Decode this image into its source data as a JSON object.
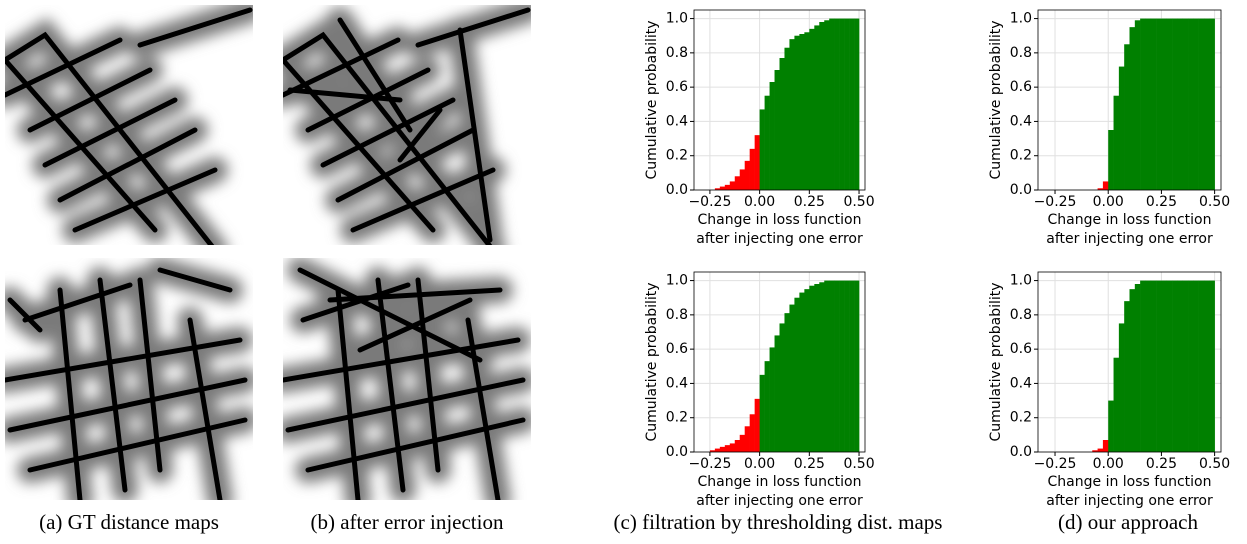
{
  "chart_data": [
    {
      "type": "histogram",
      "ylabel": "Cumulative probability",
      "xlabel": [
        "Change in loss function",
        "after injecting one error"
      ],
      "bins": [
        -0.3,
        -0.275,
        -0.25,
        -0.225,
        -0.2,
        -0.175,
        -0.15,
        -0.125,
        -0.1,
        -0.075,
        -0.05,
        -0.025,
        0,
        0.025,
        0.05,
        0.075,
        0.1,
        0.125,
        0.15,
        0.175,
        0.2,
        0.225,
        0.25,
        0.275,
        0.3,
        0.325,
        0.35,
        0.375,
        0.4,
        0.425,
        0.45,
        0.475,
        0.5
      ],
      "values": [
        0,
        0,
        0,
        0.01,
        0.02,
        0.03,
        0.05,
        0.08,
        0.12,
        0.17,
        0.24,
        0.32,
        0.47,
        0.55,
        0.63,
        0.7,
        0.77,
        0.83,
        0.88,
        0.9,
        0.91,
        0.92,
        0.94,
        0.96,
        0.98,
        0.99,
        1,
        1,
        1,
        1,
        1,
        1
      ],
      "colors": [
        "#ff0000",
        "#ff0000",
        "#ff0000",
        "#ff0000",
        "#ff0000",
        "#ff0000",
        "#ff0000",
        "#ff0000",
        "#ff0000",
        "#ff0000",
        "#ff0000",
        "#ff0000",
        "#008000",
        "#008000",
        "#008000",
        "#008000",
        "#008000",
        "#008000",
        "#008000",
        "#008000",
        "#008000",
        "#008000",
        "#008000",
        "#008000",
        "#008000",
        "#008000",
        "#008000",
        "#008000",
        "#008000",
        "#008000",
        "#008000",
        "#008000"
      ],
      "xlim": [
        -0.33,
        0.53
      ],
      "ylim": [
        0,
        1.05
      ],
      "xticks": [
        {
          "value": -0.25,
          "label": "−0.25"
        },
        {
          "value": 0,
          "label": "0.00"
        },
        {
          "value": 0.25,
          "label": "0.25"
        },
        {
          "value": 0.5,
          "label": "0.50"
        }
      ],
      "yticks": [
        {
          "value": 0,
          "label": "0.0"
        },
        0.2,
        0.4,
        0.6,
        0.8,
        {
          "value": 1,
          "label": "1.0"
        }
      ],
      "grid": true
    },
    {
      "type": "histogram",
      "ylabel": "Cumulative probability",
      "xlabel": [
        "Change in loss function",
        "after injecting one error"
      ],
      "bins": [
        -0.3,
        -0.275,
        -0.25,
        -0.225,
        -0.2,
        -0.175,
        -0.15,
        -0.125,
        -0.1,
        -0.075,
        -0.05,
        -0.025,
        0,
        0.025,
        0.05,
        0.075,
        0.1,
        0.125,
        0.15,
        0.175,
        0.2,
        0.225,
        0.25,
        0.275,
        0.3,
        0.325,
        0.35,
        0.375,
        0.4,
        0.425,
        0.45,
        0.475,
        0.5
      ],
      "values": [
        0,
        0,
        0,
        0,
        0,
        0,
        0,
        0,
        0,
        0,
        0.01,
        0.05,
        0.35,
        0.55,
        0.72,
        0.85,
        0.95,
        0.99,
        1,
        1,
        1,
        1,
        1,
        1,
        1,
        1,
        1,
        1,
        1,
        1,
        1,
        1
      ],
      "colors": [
        "#ff0000",
        "#ff0000",
        "#ff0000",
        "#ff0000",
        "#ff0000",
        "#ff0000",
        "#ff0000",
        "#ff0000",
        "#ff0000",
        "#ff0000",
        "#ff0000",
        "#ff0000",
        "#008000",
        "#008000",
        "#008000",
        "#008000",
        "#008000",
        "#008000",
        "#008000",
        "#008000",
        "#008000",
        "#008000",
        "#008000",
        "#008000",
        "#008000",
        "#008000",
        "#008000",
        "#008000",
        "#008000",
        "#008000",
        "#008000",
        "#008000"
      ],
      "xlim": [
        -0.33,
        0.53
      ],
      "ylim": [
        0,
        1.05
      ],
      "xticks": [
        {
          "value": -0.25,
          "label": "−0.25"
        },
        {
          "value": 0,
          "label": "0.00"
        },
        {
          "value": 0.25,
          "label": "0.25"
        },
        {
          "value": 0.5,
          "label": "0.50"
        }
      ],
      "yticks": [
        {
          "value": 0,
          "label": "0.0"
        },
        0.2,
        0.4,
        0.6,
        0.8,
        {
          "value": 1,
          "label": "1.0"
        }
      ],
      "grid": true
    },
    {
      "type": "histogram",
      "ylabel": "Cumulative probability",
      "xlabel": [
        "Change in loss function",
        "after injecting one error"
      ],
      "bins": [
        -0.3,
        -0.275,
        -0.25,
        -0.225,
        -0.2,
        -0.175,
        -0.15,
        -0.125,
        -0.1,
        -0.075,
        -0.05,
        -0.025,
        0,
        0.025,
        0.05,
        0.075,
        0.1,
        0.125,
        0.15,
        0.175,
        0.2,
        0.225,
        0.25,
        0.275,
        0.3,
        0.325,
        0.35,
        0.375,
        0.4,
        0.425,
        0.45,
        0.475,
        0.5
      ],
      "values": [
        0,
        0,
        0.01,
        0.02,
        0.03,
        0.04,
        0.05,
        0.07,
        0.1,
        0.15,
        0.22,
        0.31,
        0.45,
        0.53,
        0.61,
        0.68,
        0.75,
        0.81,
        0.86,
        0.9,
        0.93,
        0.95,
        0.97,
        0.98,
        0.99,
        1,
        1,
        1,
        1,
        1,
        1,
        1
      ],
      "colors": [
        "#ff0000",
        "#ff0000",
        "#ff0000",
        "#ff0000",
        "#ff0000",
        "#ff0000",
        "#ff0000",
        "#ff0000",
        "#ff0000",
        "#ff0000",
        "#ff0000",
        "#ff0000",
        "#008000",
        "#008000",
        "#008000",
        "#008000",
        "#008000",
        "#008000",
        "#008000",
        "#008000",
        "#008000",
        "#008000",
        "#008000",
        "#008000",
        "#008000",
        "#008000",
        "#008000",
        "#008000",
        "#008000",
        "#008000",
        "#008000",
        "#008000"
      ],
      "xlim": [
        -0.33,
        0.53
      ],
      "ylim": [
        0,
        1.05
      ],
      "xticks": [
        {
          "value": -0.25,
          "label": "−0.25"
        },
        {
          "value": 0,
          "label": "0.00"
        },
        {
          "value": 0.25,
          "label": "0.25"
        },
        {
          "value": 0.5,
          "label": "0.50"
        }
      ],
      "yticks": [
        {
          "value": 0,
          "label": "0.0"
        },
        0.2,
        0.4,
        0.6,
        0.8,
        {
          "value": 1,
          "label": "1.0"
        }
      ],
      "grid": true
    },
    {
      "type": "histogram",
      "ylabel": "Cumulative probability",
      "xlabel": [
        "Change in loss function",
        "after injecting one error"
      ],
      "bins": [
        -0.3,
        -0.275,
        -0.25,
        -0.225,
        -0.2,
        -0.175,
        -0.15,
        -0.125,
        -0.1,
        -0.075,
        -0.05,
        -0.025,
        0,
        0.025,
        0.05,
        0.075,
        0.1,
        0.125,
        0.15,
        0.175,
        0.2,
        0.225,
        0.25,
        0.275,
        0.3,
        0.325,
        0.35,
        0.375,
        0.4,
        0.425,
        0.45,
        0.475,
        0.5
      ],
      "values": [
        0,
        0,
        0,
        0,
        0,
        0,
        0,
        0,
        0,
        0.01,
        0.02,
        0.07,
        0.3,
        0.55,
        0.75,
        0.88,
        0.95,
        0.98,
        1,
        1,
        1,
        1,
        1,
        1,
        1,
        1,
        1,
        1,
        1,
        1,
        1,
        1
      ],
      "colors": [
        "#ff0000",
        "#ff0000",
        "#ff0000",
        "#ff0000",
        "#ff0000",
        "#ff0000",
        "#ff0000",
        "#ff0000",
        "#ff0000",
        "#ff0000",
        "#ff0000",
        "#ff0000",
        "#008000",
        "#008000",
        "#008000",
        "#008000",
        "#008000",
        "#008000",
        "#008000",
        "#008000",
        "#008000",
        "#008000",
        "#008000",
        "#008000",
        "#008000",
        "#008000",
        "#008000",
        "#008000",
        "#008000",
        "#008000",
        "#008000",
        "#008000"
      ],
      "xlim": [
        -0.33,
        0.53
      ],
      "ylim": [
        0,
        1.05
      ],
      "xticks": [
        {
          "value": -0.25,
          "label": "−0.25"
        },
        {
          "value": 0,
          "label": "0.00"
        },
        {
          "value": 0.25,
          "label": "0.25"
        },
        {
          "value": 0.5,
          "label": "0.50"
        }
      ],
      "yticks": [
        {
          "value": 0,
          "label": "0.0"
        },
        0.2,
        0.4,
        0.6,
        0.8,
        {
          "value": 1,
          "label": "1.0"
        }
      ],
      "grid": true
    }
  ],
  "captions": [
    "(a) GT distance maps",
    "(b) after error injection",
    "(c) filtration by thresholding dist. maps",
    "(d) our approach"
  ]
}
